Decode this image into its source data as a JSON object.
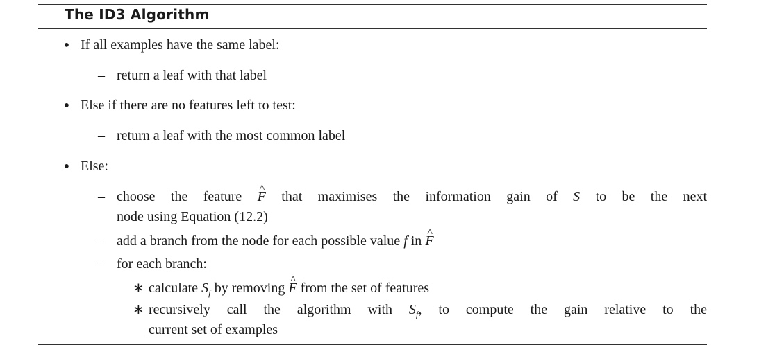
{
  "title": "The ID3 Algorithm",
  "items": {
    "b1": "If all examples have the same label:",
    "b1_sub1": "return a leaf with that label",
    "b2": "Else if there are no features left to test:",
    "b2_sub1": "return a leaf with the most common label",
    "b3": "Else:",
    "b3_sub1_pre": "choose the feature",
    "b3_sub1_sym": "F",
    "b3_sub1_mid": "that maximises the information gain of",
    "b3_sub1_S": "S",
    "b3_sub1_post": "to be the next",
    "b3_sub1_line2": "node using Equation (12.2)",
    "b3_sub2_pre": "add a branch from the node for each possible value",
    "b3_sub2_f": "f",
    "b3_sub2_in": "in",
    "b3_sub2_sym": "F",
    "b3_sub3": "for each branch:",
    "b3_sub3_s1_pre": "calculate",
    "b3_sub3_s1_S": "S",
    "b3_sub3_s1_f": "f",
    "b3_sub3_s1_mid": "by removing",
    "b3_sub3_s1_sym": "F",
    "b3_sub3_s1_post": "from the set of features",
    "b3_sub3_s2_pre": "recursively call the algorithm with",
    "b3_sub3_s2_S": "S",
    "b3_sub3_s2_f": "f",
    "b3_sub3_s2_post": ", to compute the gain relative to the",
    "b3_sub3_s2_line2": "current set of examples"
  },
  "markers": {
    "bullet": "•",
    "dash": "–",
    "star": "∗"
  }
}
